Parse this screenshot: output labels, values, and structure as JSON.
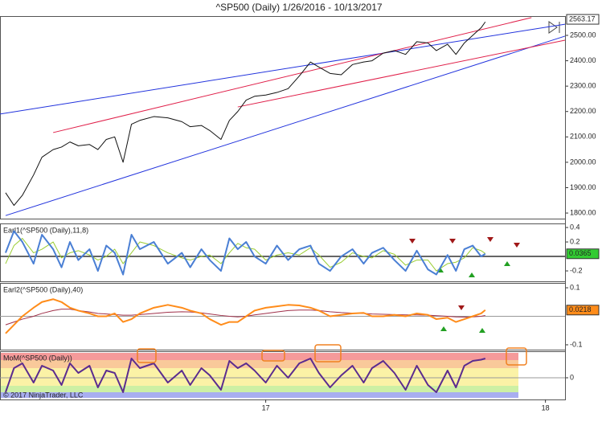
{
  "chart_data": [
    {
      "type": "line",
      "title": "^SP500 (Daily)  1/26/2016 - 10/13/2017",
      "xlim": [
        16.05,
        18.07
      ],
      "ylim": [
        1778,
        2576
      ],
      "yticks": [
        {
          "value": 1800,
          "label": "1800.00"
        },
        {
          "value": 1900,
          "label": "1900.00"
        },
        {
          "value": 2000,
          "label": "2000.00"
        },
        {
          "value": 2100,
          "label": "2100.00"
        },
        {
          "value": 2200,
          "label": "2200.00"
        },
        {
          "value": 2300,
          "label": "2300.00"
        },
        {
          "value": 2400,
          "label": "2400.00"
        },
        {
          "value": 2500,
          "label": "2500.00"
        }
      ],
      "x": [
        16.07,
        16.1,
        16.13,
        16.17,
        16.2,
        16.24,
        16.27,
        16.3,
        16.33,
        16.37,
        16.4,
        16.43,
        16.46,
        16.49,
        16.52,
        16.55,
        16.6,
        16.65,
        16.7,
        16.73,
        16.77,
        16.8,
        16.84,
        16.87,
        16.9,
        16.93,
        16.96,
        17.0,
        17.04,
        17.08,
        17.12,
        17.16,
        17.19,
        17.23,
        17.27,
        17.31,
        17.35,
        17.38,
        17.42,
        17.46,
        17.5,
        17.54,
        17.58,
        17.61,
        17.65,
        17.68,
        17.71,
        17.74,
        17.77,
        17.785
      ],
      "series": [
        {
          "color": "#111111",
          "width": 1,
          "values": [
            1880,
            1830,
            1870,
            1950,
            2020,
            2050,
            2060,
            2080,
            2065,
            2070,
            2050,
            2090,
            2100,
            2000,
            2150,
            2165,
            2180,
            2175,
            2160,
            2140,
            2145,
            2125,
            2090,
            2165,
            2200,
            2245,
            2260,
            2265,
            2275,
            2290,
            2340,
            2395,
            2375,
            2350,
            2345,
            2385,
            2395,
            2400,
            2430,
            2440,
            2425,
            2475,
            2470,
            2440,
            2465,
            2425,
            2470,
            2500,
            2530,
            2553
          ]
        }
      ],
      "trendlines": [
        {
          "color": "#2233dd",
          "x": [
            16.05,
            18.07
          ],
          "y": [
            2190,
            2544
          ]
        },
        {
          "color": "#2233dd",
          "x": [
            16.07,
            18.07
          ],
          "y": [
            1790,
            2497
          ]
        },
        {
          "color": "#e0204a",
          "x": [
            16.24,
            17.95
          ],
          "y": [
            2117,
            2570
          ]
        },
        {
          "color": "#e0204a",
          "x": [
            16.9,
            18.07
          ],
          "y": [
            2218,
            2481
          ]
        }
      ],
      "last_value": 2563.17,
      "last_color": "#ffffff",
      "grid": false
    },
    {
      "type": "line",
      "title": "Earl1(^SP500 (Daily),11,8)",
      "xlim": [
        16.05,
        18.07
      ],
      "ylim": [
        -0.344,
        0.456
      ],
      "yticks": [
        0.4,
        0.2,
        -0.2
      ],
      "x": [
        16.07,
        16.1,
        16.13,
        16.17,
        16.2,
        16.24,
        16.27,
        16.3,
        16.33,
        16.37,
        16.4,
        16.43,
        16.46,
        16.49,
        16.52,
        16.55,
        16.6,
        16.65,
        16.7,
        16.73,
        16.77,
        16.8,
        16.84,
        16.87,
        16.9,
        16.93,
        16.96,
        17.0,
        17.04,
        17.08,
        17.12,
        17.16,
        17.19,
        17.23,
        17.27,
        17.31,
        17.35,
        17.38,
        17.42,
        17.46,
        17.5,
        17.54,
        17.58,
        17.61,
        17.65,
        17.68,
        17.71,
        17.74,
        17.77,
        17.785
      ],
      "series": [
        {
          "color": "#9acd32",
          "width": 1,
          "values": [
            -0.1,
            0.15,
            0.25,
            0.05,
            0.1,
            0.2,
            -0.02,
            0.05,
            0.08,
            0.02,
            -0.05,
            0,
            0.1,
            -0.1,
            0.05,
            0.2,
            0.15,
            0.05,
            -0.02,
            -0.05,
            0,
            0.02,
            -0.1,
            0.05,
            0.18,
            0.12,
            0.1,
            -0.05,
            0.02,
            0.05,
            0.02,
            0.12,
            0.02,
            -0.15,
            -0.08,
            0.05,
            0,
            -0.02,
            0.08,
            0.03,
            -0.12,
            -0.05,
            -0.05,
            -0.2,
            -0.1,
            -0.08,
            -0.02,
            0.12,
            0.08,
            0.04
          ]
        },
        {
          "color": "#4a7fd4",
          "width": 2,
          "values": [
            0.05,
            0.35,
            0.2,
            -0.1,
            0.3,
            0.1,
            -0.15,
            0.2,
            -0.05,
            0.1,
            -0.2,
            0.15,
            0.05,
            -0.25,
            0.3,
            0.1,
            0.2,
            -0.1,
            0.05,
            -0.15,
            0.1,
            -0.05,
            -0.2,
            0.25,
            0.1,
            0.2,
            0,
            -0.1,
            0.15,
            -0.05,
            0.1,
            0.15,
            -0.1,
            -0.2,
            0,
            0.1,
            -0.1,
            0.05,
            0.12,
            -0.05,
            -0.2,
            0.08,
            -0.18,
            -0.25,
            0.02,
            -0.2,
            0.1,
            0.15,
            0,
            0.0365
          ]
        }
      ],
      "last_value": 0.0365,
      "last_color": "#33cc33",
      "grid": false
    },
    {
      "type": "line",
      "title": "Earl2(^SP500 (Daily),40)",
      "xlim": [
        16.05,
        18.07
      ],
      "ylim": [
        -0.117,
        0.117
      ],
      "yticks": [
        0.1,
        -0.1
      ],
      "x": [
        16.07,
        16.1,
        16.13,
        16.17,
        16.2,
        16.24,
        16.27,
        16.3,
        16.33,
        16.37,
        16.4,
        16.43,
        16.46,
        16.49,
        16.52,
        16.55,
        16.6,
        16.65,
        16.7,
        16.73,
        16.77,
        16.8,
        16.84,
        16.87,
        16.9,
        16.93,
        16.96,
        17.0,
        17.04,
        17.08,
        17.12,
        17.16,
        17.19,
        17.23,
        17.27,
        17.31,
        17.35,
        17.38,
        17.42,
        17.46,
        17.5,
        17.54,
        17.58,
        17.61,
        17.65,
        17.68,
        17.71,
        17.74,
        17.77,
        17.785
      ],
      "series": [
        {
          "color": "#a0304a",
          "width": 1,
          "values": [
            -0.03,
            -0.02,
            -0.01,
            0,
            0.01,
            0.02,
            0.025,
            0.025,
            0.02,
            0.015,
            0.01,
            0.008,
            0.006,
            0.004,
            0.004,
            0.006,
            0.01,
            0.014,
            0.016,
            0.015,
            0.012,
            0.008,
            0.003,
            0,
            -0.002,
            0,
            0.005,
            0.01,
            0.015,
            0.02,
            0.022,
            0.022,
            0.02,
            0.016,
            0.013,
            0.011,
            0.01,
            0.008,
            0.007,
            0.006,
            0.005,
            0.005,
            0.004,
            0.002,
            0,
            -0.002,
            -0.003,
            -0.002,
            0,
            0.003
          ]
        },
        {
          "color": "#ff8c1a",
          "width": 2,
          "values": [
            -0.06,
            -0.03,
            0,
            0.03,
            0.05,
            0.06,
            0.05,
            0.03,
            0.02,
            0.01,
            0,
            0,
            0.01,
            -0.02,
            -0.01,
            0.01,
            0.03,
            0.04,
            0.03,
            0.02,
            0.01,
            -0.01,
            -0.03,
            -0.02,
            -0.02,
            0,
            0.02,
            0.03,
            0.035,
            0.04,
            0.038,
            0.03,
            0.02,
            0,
            0.005,
            0.01,
            0.012,
            0,
            0,
            0.005,
            0,
            0.01,
            0.005,
            -0.01,
            -0.005,
            -0.02,
            -0.01,
            0,
            0.01,
            0.0218
          ]
        }
      ],
      "last_value": 0.0218,
      "last_color": "#ff8c1a",
      "grid": false
    },
    {
      "type": "line",
      "title": "MoM(^SP500 (Daily))",
      "annotation": "© 2017 NinjaTrader, LLC",
      "xlim": [
        16.05,
        18.07
      ],
      "ylim": [
        -0.9,
        1.1
      ],
      "yticks": [
        0
      ],
      "xticks": [
        17,
        18
      ],
      "x": [
        16.07,
        16.1,
        16.13,
        16.17,
        16.2,
        16.24,
        16.27,
        16.3,
        16.33,
        16.37,
        16.4,
        16.43,
        16.46,
        16.49,
        16.52,
        16.55,
        16.6,
        16.65,
        16.7,
        16.73,
        16.77,
        16.8,
        16.84,
        16.87,
        16.9,
        16.93,
        16.96,
        17.0,
        17.04,
        17.08,
        17.12,
        17.16,
        17.19,
        17.23,
        17.27,
        17.31,
        17.35,
        17.38,
        17.42,
        17.46,
        17.5,
        17.54,
        17.58,
        17.61,
        17.65,
        17.68,
        17.71,
        17.74,
        17.77,
        17.785
      ],
      "series": [
        {
          "color": "#5b2c8f",
          "width": 2,
          "values": [
            -0.6,
            0.4,
            0.6,
            -0.2,
            0.5,
            0.3,
            -0.3,
            0.6,
            0.2,
            0.5,
            -0.4,
            0.3,
            0.2,
            -0.6,
            0.8,
            0.4,
            0.6,
            -0.2,
            0.3,
            -0.3,
            0.4,
            0.1,
            -0.5,
            0.7,
            0.4,
            0.6,
            0.3,
            -0.2,
            0.5,
            0,
            0.6,
            0.8,
            0.2,
            -0.4,
            0.1,
            0.5,
            -0.2,
            0.4,
            0.7,
            0.2,
            -0.5,
            0.5,
            -0.3,
            -0.6,
            0.3,
            -0.4,
            0.5,
            0.7,
            0.75,
            0.8
          ]
        }
      ],
      "grid": false
    }
  ]
}
